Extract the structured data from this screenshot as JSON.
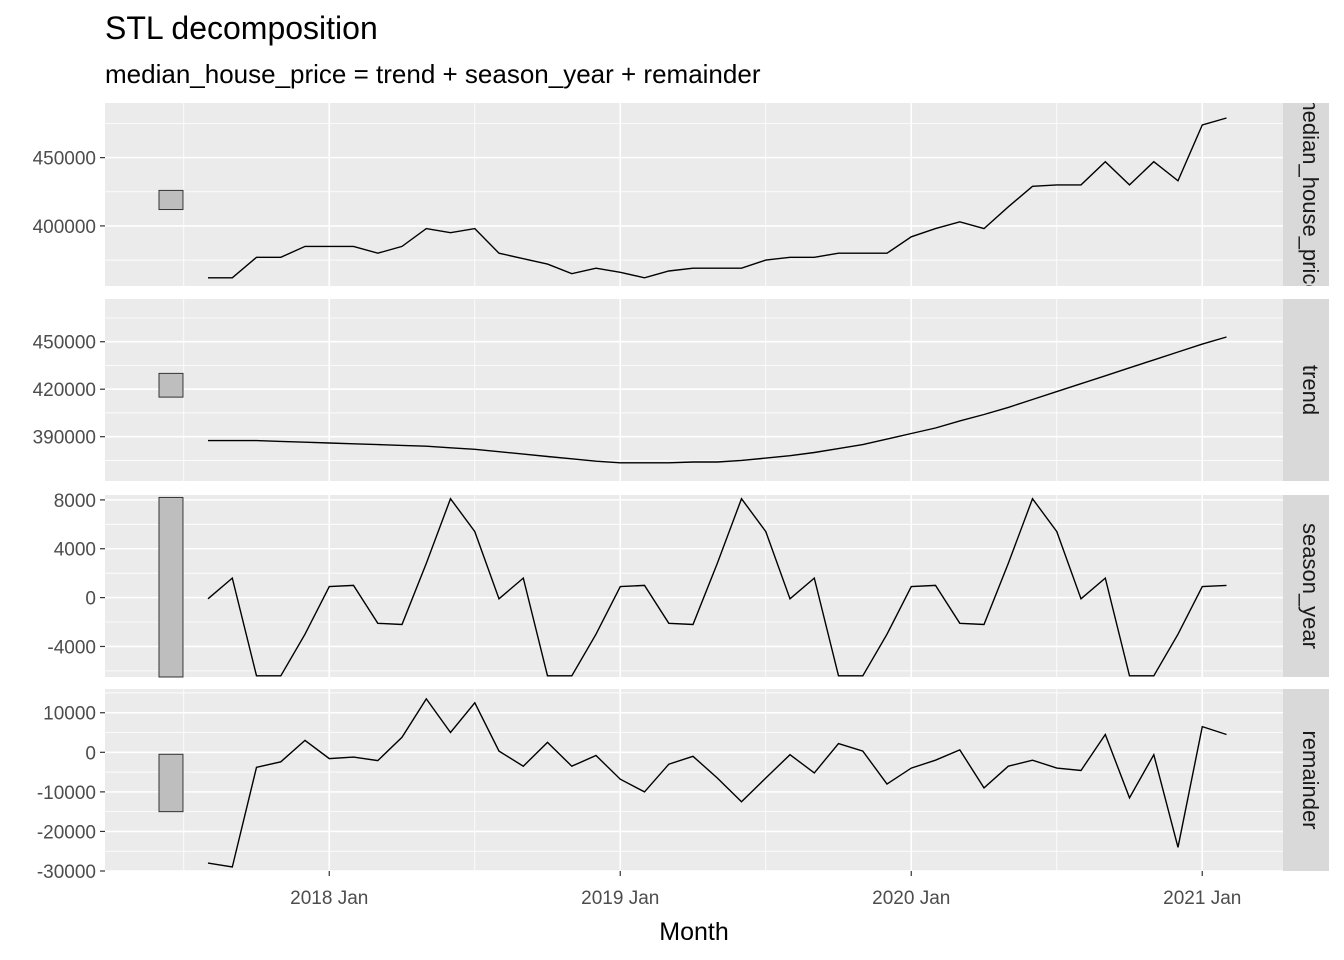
{
  "chart_data": {
    "type": "line",
    "title": "STL decomposition",
    "subtitle": "median_house_price = trend + season_year + remainder",
    "xlabel": "Month",
    "x_tick_labels": [
      "2018 Jan",
      "2019 Jan",
      "2020 Jan",
      "2021 Jan"
    ],
    "x": [
      "2017 Aug",
      "2017 Sep",
      "2017 Oct",
      "2017 Nov",
      "2017 Dec",
      "2018 Jan",
      "2018 Feb",
      "2018 Mar",
      "2018 Apr",
      "2018 May",
      "2018 Jun",
      "2018 Jul",
      "2018 Aug",
      "2018 Sep",
      "2018 Oct",
      "2018 Nov",
      "2018 Dec",
      "2019 Jan",
      "2019 Feb",
      "2019 Mar",
      "2019 Apr",
      "2019 May",
      "2019 Jun",
      "2019 Jul",
      "2019 Aug",
      "2019 Sep",
      "2019 Oct",
      "2019 Nov",
      "2019 Dec",
      "2020 Jan",
      "2020 Feb",
      "2020 Mar",
      "2020 Apr",
      "2020 May",
      "2020 Jun",
      "2020 Jul",
      "2020 Aug",
      "2020 Sep",
      "2020 Oct",
      "2020 Nov",
      "2020 Dec",
      "2021 Jan",
      "2021 Feb"
    ],
    "grid": true,
    "panels": [
      {
        "name": "median_house_price",
        "ylim": [
          356000,
          490000
        ],
        "y_ticks": [
          400000,
          450000
        ],
        "y_tick_labels": [
          "400000",
          "450000"
        ],
        "scale_bar": [
          412000,
          426000
        ],
        "values": [
          362000,
          362000,
          377000,
          377000,
          385000,
          385000,
          385000,
          380000,
          385000,
          398000,
          395000,
          398000,
          380000,
          376000,
          372000,
          365000,
          369000,
          366000,
          362000,
          367000,
          369000,
          369000,
          369000,
          375000,
          377000,
          377000,
          380000,
          380000,
          380000,
          392000,
          398000,
          403000,
          398000,
          414000,
          429000,
          430000,
          430000,
          447000,
          430000,
          447000,
          433000,
          474000,
          479000
        ]
      },
      {
        "name": "trend",
        "ylim": [
          362000,
          477000
        ],
        "y_ticks": [
          390000,
          420000,
          450000
        ],
        "y_tick_labels": [
          "390000",
          "420000",
          "450000"
        ],
        "scale_bar": [
          415000,
          430000
        ],
        "values": [
          387500,
          387500,
          387500,
          387000,
          386500,
          386000,
          385500,
          385000,
          384500,
          384000,
          383000,
          382000,
          380500,
          379000,
          377500,
          376000,
          374500,
          373500,
          373500,
          373500,
          374000,
          374000,
          375000,
          376500,
          378000,
          380000,
          382500,
          385000,
          388500,
          392000,
          395500,
          400000,
          404000,
          408500,
          413500,
          418500,
          423500,
          428500,
          433500,
          438500,
          443500,
          448500,
          453000
        ]
      },
      {
        "name": "season_year",
        "ylim": [
          -6500,
          8400
        ],
        "y_ticks": [
          -4000,
          0,
          4000,
          8000
        ],
        "y_tick_labels": [
          "-4000",
          "0",
          "4000",
          "8000"
        ],
        "scale_bar": [
          -6500,
          8200
        ],
        "values": [
          -100,
          1600,
          -6400,
          -6400,
          -3000,
          900,
          1000,
          -2100,
          -2200,
          2800,
          8100,
          5400,
          -100,
          1600,
          -6400,
          -6400,
          -3000,
          900,
          1000,
          -2100,
          -2200,
          2800,
          8100,
          5400,
          -100,
          1600,
          -6400,
          -6400,
          -3000,
          900,
          1000,
          -2100,
          -2200,
          2800,
          8100,
          5400,
          -100,
          1600,
          -6400,
          -6400,
          -3000,
          900,
          1000
        ]
      },
      {
        "name": "remainder",
        "ylim": [
          -30000,
          16000
        ],
        "y_ticks": [
          -30000,
          -20000,
          -10000,
          0,
          10000
        ],
        "y_tick_labels": [
          "-30000",
          "-20000",
          "-10000",
          "0",
          "10000"
        ],
        "scale_bar": [
          -15000,
          -500
        ],
        "values": [
          -28000,
          -29000,
          -3800,
          -2400,
          3000,
          -1600,
          -1200,
          -2100,
          3800,
          13500,
          5000,
          12500,
          300,
          -3500,
          2500,
          -3500,
          -800,
          -6800,
          -10000,
          -3000,
          -1000,
          -6500,
          -12500,
          -6500,
          -600,
          -5200,
          2200,
          300,
          -8000,
          -4000,
          -2000,
          600,
          -9000,
          -3500,
          -2000,
          -4000,
          -4600,
          4500,
          -11500,
          -600,
          -24000,
          6500,
          4500
        ]
      }
    ]
  }
}
